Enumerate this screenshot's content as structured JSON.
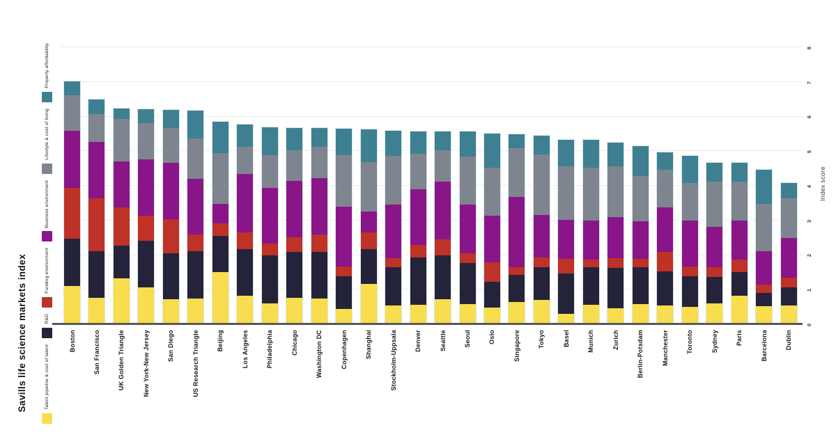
{
  "title": "Savills life science markets index",
  "axis": {
    "ylabel": "Index score",
    "ticks": [
      0,
      1,
      2,
      3,
      4,
      5,
      6,
      7,
      8
    ],
    "ymax": 8
  },
  "legend": [
    {
      "label": "Property affordability",
      "color": "#3e8092"
    },
    {
      "label": "Lifestyle & cost of living",
      "color": "#7e858f"
    },
    {
      "label": "Business environment",
      "color": "#8a1588"
    },
    {
      "label": "Funding environment",
      "color": "#be3227"
    },
    {
      "label": "R&D",
      "color": "#252339"
    },
    {
      "label": "Talent pipeline & cost of talent",
      "color": "#f8dd4e"
    }
  ],
  "chart_data": {
    "type": "bar",
    "stacked": true,
    "title": "Savills life science markets index",
    "xlabel": "",
    "ylabel": "Index score",
    "ylim": [
      0,
      8
    ],
    "grid": true,
    "legend_position": "left",
    "categories": [
      "Boston",
      "San Francisco",
      "UK Golden Triangle",
      "New York-New Jersey",
      "San Diego",
      "US Research Triangle",
      "Beijing",
      "Los Angeles",
      "Philadelphia",
      "Chicago",
      "Washington DC",
      "Copenhagen",
      "Shanghai",
      "Stockholm-Uppsala",
      "Denver",
      "Seattle",
      "Seoul",
      "Oslo",
      "Singapore",
      "Tokyo",
      "Basel",
      "Munich",
      "Zurich",
      "Berlin-Potsdam",
      "Manchester",
      "Toronto",
      "Sydney",
      "Paris",
      "Barcelona",
      "Dublin"
    ],
    "series": [
      {
        "name": "Talent pipeline & cost of talent",
        "color": "#f8dd4e",
        "values": [
          1.08,
          0.75,
          1.31,
          1.04,
          0.7,
          0.73,
          1.49,
          0.8,
          0.59,
          0.75,
          0.73,
          0.43,
          1.14,
          0.53,
          0.55,
          0.7,
          0.57,
          0.46,
          0.63,
          0.68,
          0.28,
          0.55,
          0.45,
          0.57,
          0.53,
          0.48,
          0.58,
          0.81,
          0.5,
          0.53
        ]
      },
      {
        "name": "R&D",
        "color": "#252339",
        "values": [
          1.37,
          1.34,
          0.95,
          1.35,
          1.33,
          1.36,
          1.05,
          1.35,
          1.39,
          1.33,
          1.35,
          0.94,
          1.02,
          1.09,
          1.35,
          1.28,
          1.18,
          0.75,
          0.77,
          0.94,
          1.16,
          1.08,
          1.15,
          1.06,
          0.98,
          0.89,
          0.76,
          0.68,
          0.38,
          0.51
        ]
      },
      {
        "name": "Funding environment",
        "color": "#be3227",
        "values": [
          1.47,
          1.52,
          1.1,
          0.72,
          0.98,
          0.48,
          0.36,
          0.48,
          0.34,
          0.42,
          0.49,
          0.27,
          0.47,
          0.27,
          0.38,
          0.45,
          0.28,
          0.56,
          0.22,
          0.29,
          0.44,
          0.22,
          0.3,
          0.24,
          0.57,
          0.27,
          0.28,
          0.35,
          0.24,
          0.29
        ]
      },
      {
        "name": "Business environment",
        "color": "#8a1588",
        "values": [
          1.64,
          1.63,
          1.33,
          1.64,
          1.63,
          1.61,
          0.56,
          1.69,
          1.61,
          1.63,
          1.63,
          1.73,
          0.6,
          1.54,
          1.6,
          1.67,
          1.4,
          1.35,
          2.04,
          1.23,
          1.11,
          1.13,
          1.18,
          1.09,
          1.28,
          1.33,
          1.17,
          1.13,
          0.97,
          1.15
        ]
      },
      {
        "name": "Lifestyle & cost of living",
        "color": "#7e858f",
        "values": [
          1.04,
          0.81,
          1.23,
          1.03,
          1.0,
          1.17,
          1.46,
          0.78,
          0.93,
          0.88,
          0.9,
          1.5,
          1.43,
          1.41,
          1.03,
          0.91,
          1.4,
          1.39,
          1.41,
          1.75,
          1.55,
          1.53,
          1.46,
          1.31,
          1.08,
          1.1,
          1.32,
          1.13,
          1.37,
          1.14
        ]
      },
      {
        "name": "Property affordability",
        "color": "#3e8092",
        "values": [
          0.4,
          0.42,
          0.3,
          0.42,
          0.54,
          0.8,
          0.9,
          0.65,
          0.81,
          0.64,
          0.55,
          0.76,
          0.94,
          0.72,
          0.64,
          0.54,
          0.72,
          0.97,
          0.39,
          0.54,
          0.76,
          0.8,
          0.69,
          0.85,
          0.5,
          0.77,
          0.54,
          0.55,
          0.99,
          0.45
        ]
      }
    ]
  }
}
